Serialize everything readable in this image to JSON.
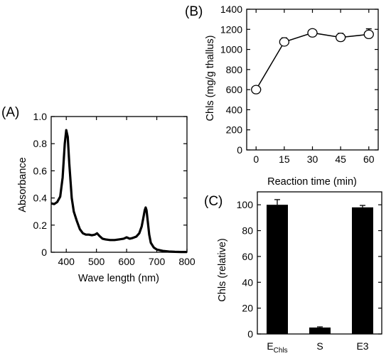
{
  "panels": [
    {
      "label": "(A)",
      "chart_data": {
        "type": "line",
        "xlabel": "Wave length (nm)",
        "ylabel": "Absorbance",
        "xlim": [
          350,
          800
        ],
        "ylim": [
          0,
          1.0
        ],
        "xticks": [
          400,
          500,
          600,
          700,
          800
        ],
        "yticks": [
          0,
          0.2,
          0.4,
          0.6,
          0.8,
          1.0
        ],
        "ytick_labels": [
          "0",
          "0.2",
          "0.4",
          "0.6",
          "0.8",
          "1.0"
        ],
        "grid": false,
        "series": [
          {
            "x": [
              350,
              360,
              370,
              380,
              388,
              395,
              400,
              405,
              410,
              418,
              425,
              435,
              445,
              455,
              465,
              475,
              485,
              495,
              502,
              510,
              520,
              530,
              545,
              560,
              575,
              590,
              600,
              610,
              620,
              632,
              642,
              650,
              655,
              660,
              663,
              666,
              670,
              675,
              680,
              690,
              700,
              720,
              740,
              760,
              780,
              800
            ],
            "y": [
              0.36,
              0.355,
              0.37,
              0.41,
              0.55,
              0.8,
              0.9,
              0.85,
              0.65,
              0.4,
              0.3,
              0.23,
              0.17,
              0.14,
              0.13,
              0.13,
              0.125,
              0.13,
              0.14,
              0.12,
              0.1,
              0.095,
              0.09,
              0.09,
              0.095,
              0.1,
              0.11,
              0.1,
              0.105,
              0.115,
              0.14,
              0.19,
              0.25,
              0.31,
              0.33,
              0.31,
              0.23,
              0.13,
              0.07,
              0.035,
              0.02,
              0.01,
              0.005,
              0.003,
              0.002,
              0.002
            ]
          }
        ]
      }
    },
    {
      "label": "(B)",
      "chart_data": {
        "type": "line",
        "xlabel": "Reaction time (min)",
        "ylabel": "Chls  (mg/g thallus)",
        "xlim": [
          -5,
          65
        ],
        "ylim": [
          0,
          1400
        ],
        "xticks": [
          0,
          15,
          30,
          45,
          60
        ],
        "yticks": [
          0,
          200,
          400,
          600,
          800,
          1000,
          1200,
          1400
        ],
        "grid": false,
        "series": [
          {
            "x": [
              0,
              15,
              30,
              45,
              60
            ],
            "y": [
              600,
              1075,
              1165,
              1120,
              1150
            ],
            "err": [
              0,
              40,
              25,
              40,
              55
            ]
          }
        ]
      }
    },
    {
      "label": "(C)",
      "chart_data": {
        "type": "bar",
        "xlabel": "",
        "ylabel": "Chls  (relative)",
        "categories": [
          "E",
          "S",
          "E3"
        ],
        "categories_sub": [
          "Chls",
          "",
          ""
        ],
        "values": [
          100,
          5,
          98
        ],
        "errors": [
          4,
          0.5,
          1.5
        ],
        "ylim": [
          0,
          110
        ],
        "yticks": [
          0,
          20,
          40,
          60,
          80,
          100
        ],
        "grid": false
      }
    }
  ]
}
